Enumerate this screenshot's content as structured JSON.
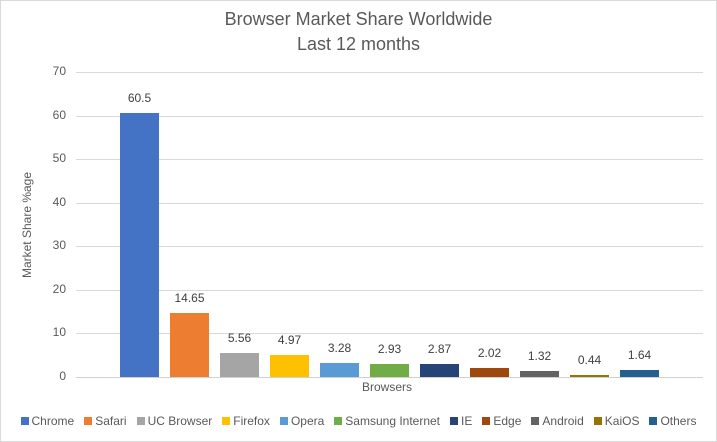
{
  "chart_data": {
    "type": "bar",
    "title": "Browser Market Share Worldwide",
    "subtitle": "Last 12 months",
    "xlabel": "Browsers",
    "ylabel": "Market Share %age",
    "ylim": [
      0,
      70
    ],
    "yticks": [
      0,
      10,
      20,
      30,
      40,
      50,
      60,
      70
    ],
    "grid": true,
    "legend_position": "bottom",
    "categories": [
      "Chrome",
      "Safari",
      "UC Browser",
      "Firefox",
      "Opera",
      "Samsung Internet",
      "IE",
      "Edge",
      "Android",
      "KaiOS",
      "Others"
    ],
    "values": [
      60.5,
      14.65,
      5.56,
      4.97,
      3.28,
      2.93,
      2.87,
      2.02,
      1.32,
      0.44,
      1.64
    ],
    "value_labels": [
      "60.5",
      "14.65",
      "5.56",
      "4.97",
      "3.28",
      "2.93",
      "2.87",
      "2.02",
      "1.32",
      "0.44",
      "1.64"
    ],
    "colors": [
      "#4472c4",
      "#ed7d31",
      "#a5a5a5",
      "#ffc000",
      "#5b9bd5",
      "#70ad47",
      "#264478",
      "#9e480e",
      "#636363",
      "#997300",
      "#255e91"
    ]
  }
}
